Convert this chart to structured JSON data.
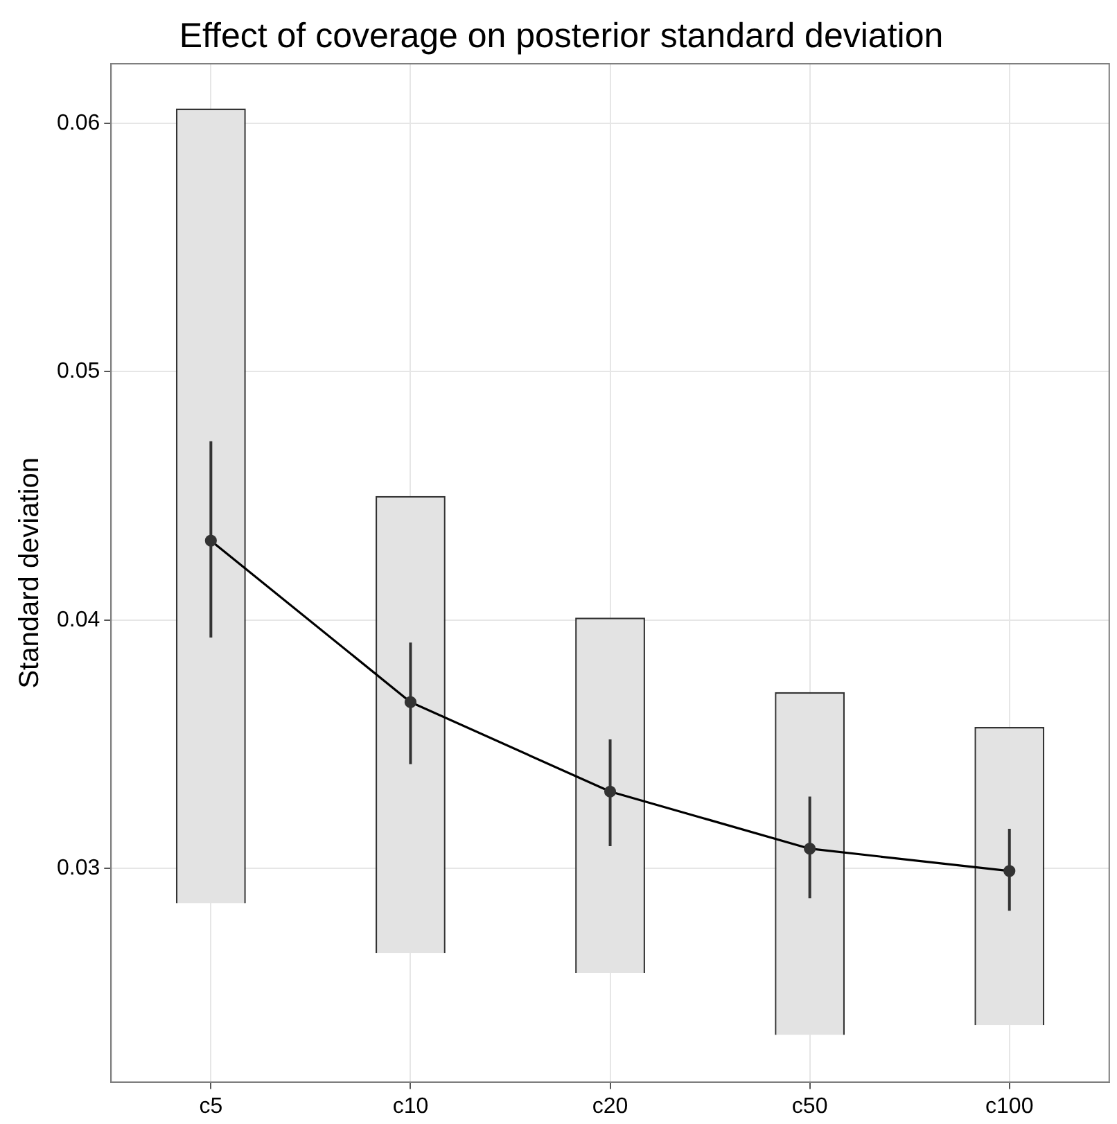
{
  "chart_data": {
    "type": "bar",
    "title": "Effect of coverage on posterior standard deviation",
    "ylabel": "Standard deviation",
    "categories": [
      "c5",
      "c10",
      "c20",
      "c50",
      "c100"
    ],
    "series": [
      {
        "color": "#e3e3e3",
        "base": [
          0.0286,
          0.0266,
          0.0258,
          0.0233,
          0.0237
        ],
        "values": [
          0.032,
          0.0184,
          0.0143,
          0.0138,
          0.012
        ]
      },
      {
        "type": "line",
        "color": "#000000",
        "values": [
          0.0432,
          0.0367,
          0.0331,
          0.0308,
          0.0299
        ],
        "errors": [
          [
            0.0393,
            0.0472
          ],
          [
            0.0342,
            0.0391
          ],
          [
            0.0309,
            0.0352
          ],
          [
            0.0288,
            0.0329
          ],
          [
            0.0283,
            0.0316
          ]
        ]
      }
    ],
    "ylim": [
      0.0214,
      0.0624
    ],
    "yticks": [
      0.03,
      0.04,
      0.05,
      0.06
    ],
    "grid": true,
    "legend": false,
    "marker": "circle",
    "line_style": "solid"
  }
}
